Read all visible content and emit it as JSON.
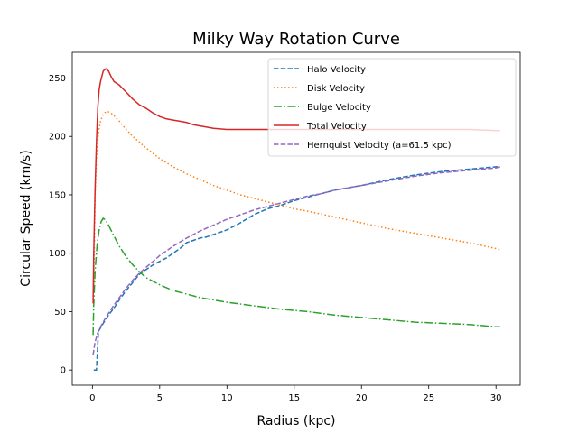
{
  "chart_data": {
    "type": "line",
    "title": "Milky Way Rotation Curve",
    "xlabel": "Radius (kpc)",
    "ylabel": "Circular Speed (km/s)",
    "xlim": [
      -1.5,
      31.8
    ],
    "ylim": [
      -13,
      272
    ],
    "xticks": [
      0,
      5,
      10,
      15,
      20,
      25,
      30
    ],
    "yticks": [
      0,
      50,
      100,
      150,
      200,
      250
    ],
    "grid": false,
    "legend_position": "top-right",
    "series": [
      {
        "name": "Halo Velocity",
        "color": "#1f77b4",
        "dash": "dashed",
        "x": [
          0.1,
          0.3,
          0.45,
          0.8,
          1.2,
          1.6,
          2.0,
          2.5,
          3.0,
          3.5,
          4.0,
          4.5,
          5.0,
          5.5,
          6.0,
          6.5,
          7.0,
          7.5,
          8.0,
          8.5,
          9.0,
          10.0,
          11.0,
          12.0,
          13.0,
          14.0,
          15.0,
          16.0,
          17.0,
          18.0,
          19.0,
          20.0,
          22.0,
          24.0,
          26.0,
          28.0,
          30.0,
          30.3
        ],
        "y": [
          0,
          0,
          33,
          40,
          47,
          53,
          60,
          68,
          75,
          82,
          86,
          90,
          93,
          96,
          100,
          104,
          109,
          111,
          113,
          114,
          116,
          120,
          126,
          133,
          138,
          141,
          145,
          148,
          151,
          154,
          156,
          158,
          163,
          167,
          170,
          172,
          174,
          174
        ]
      },
      {
        "name": "Disk Velocity",
        "color": "#ff7f0e",
        "dash": "dotted",
        "x": [
          0.1,
          0.2,
          0.3,
          0.4,
          0.5,
          0.6,
          0.8,
          1.0,
          1.2,
          1.5,
          2.0,
          2.5,
          3.0,
          3.5,
          4.0,
          5.0,
          6.0,
          7.0,
          8.0,
          9.0,
          10.0,
          11.0,
          12.0,
          13.0,
          14.0,
          15.0,
          16.0,
          18.0,
          20.0,
          22.0,
          24.0,
          26.0,
          28.0,
          30.0,
          30.3
        ],
        "y": [
          70,
          150,
          182,
          198,
          207,
          213,
          219,
          221,
          221,
          219,
          213,
          206,
          200,
          195,
          190,
          181,
          174,
          168,
          163,
          158,
          154,
          150,
          147,
          144,
          141,
          138,
          136,
          131,
          126,
          121,
          117,
          113,
          109,
          104,
          103
        ]
      },
      {
        "name": "Bulge Velocity",
        "color": "#2ca02c",
        "dash": "dashdot",
        "x": [
          0.05,
          0.1,
          0.2,
          0.35,
          0.5,
          0.65,
          0.8,
          1.0,
          1.2,
          1.5,
          2.0,
          2.5,
          3.0,
          3.5,
          4.0,
          5.0,
          6.0,
          7.0,
          8.0,
          9.0,
          10.0,
          12.0,
          14.0,
          16.0,
          18.0,
          20.0,
          22.0,
          24.0,
          26.0,
          28.0,
          30.0,
          30.3
        ],
        "y": [
          30,
          56,
          85,
          108,
          120,
          127,
          130,
          128,
          124,
          117,
          106,
          97,
          90,
          84,
          79,
          73,
          68,
          65,
          62,
          60,
          58,
          55,
          52,
          50,
          47,
          45,
          43,
          41,
          40,
          39,
          37,
          37
        ]
      },
      {
        "name": "Total Velocity",
        "color": "#d62728",
        "dash": "solid",
        "x": [
          0.05,
          0.1,
          0.2,
          0.3,
          0.4,
          0.5,
          0.6,
          0.8,
          1.0,
          1.2,
          1.4,
          1.6,
          2.0,
          2.5,
          3.0,
          3.5,
          4.0,
          4.5,
          5.0,
          5.5,
          6.0,
          6.5,
          7.0,
          7.5,
          8.0,
          8.5,
          9.0,
          10.0,
          11.0,
          12.0,
          13.0,
          14.0,
          15.0,
          16.0,
          17.0,
          18.0,
          20.0,
          22.0,
          24.0,
          26.0,
          28.0,
          30.0,
          30.3
        ],
        "y": [
          57,
          100,
          155,
          195,
          225,
          240,
          247,
          256,
          258,
          256,
          251,
          247,
          244,
          238,
          232,
          227,
          224,
          220,
          217,
          215,
          214,
          213,
          212,
          210,
          209,
          208,
          207,
          206,
          206,
          206,
          206,
          206,
          206,
          206,
          206,
          206,
          206,
          206,
          206,
          206,
          206,
          205,
          205
        ]
      },
      {
        "name": "Hernquist Velocity (a=61.5 kpc)",
        "color": "#9467bd",
        "dash": "dashed",
        "x": [
          0.05,
          0.2,
          0.4,
          0.6,
          0.8,
          1.0,
          1.5,
          2.0,
          2.5,
          3.0,
          3.5,
          4.0,
          4.5,
          5.0,
          5.5,
          6.0,
          7.0,
          8.0,
          9.0,
          10.0,
          11.0,
          12.0,
          13.0,
          14.0,
          15.0,
          16.0,
          17.0,
          18.0,
          19.0,
          20.0,
          22.0,
          24.0,
          26.0,
          28.0,
          30.0,
          30.3
        ],
        "y": [
          13,
          24,
          32,
          37,
          41,
          45,
          54,
          62,
          70,
          77,
          83,
          88,
          93,
          98,
          102,
          106,
          113,
          119,
          124,
          129,
          133,
          137,
          140,
          143,
          146,
          149,
          151,
          154,
          156,
          158,
          162,
          166,
          169,
          171,
          173,
          174
        ]
      }
    ]
  }
}
